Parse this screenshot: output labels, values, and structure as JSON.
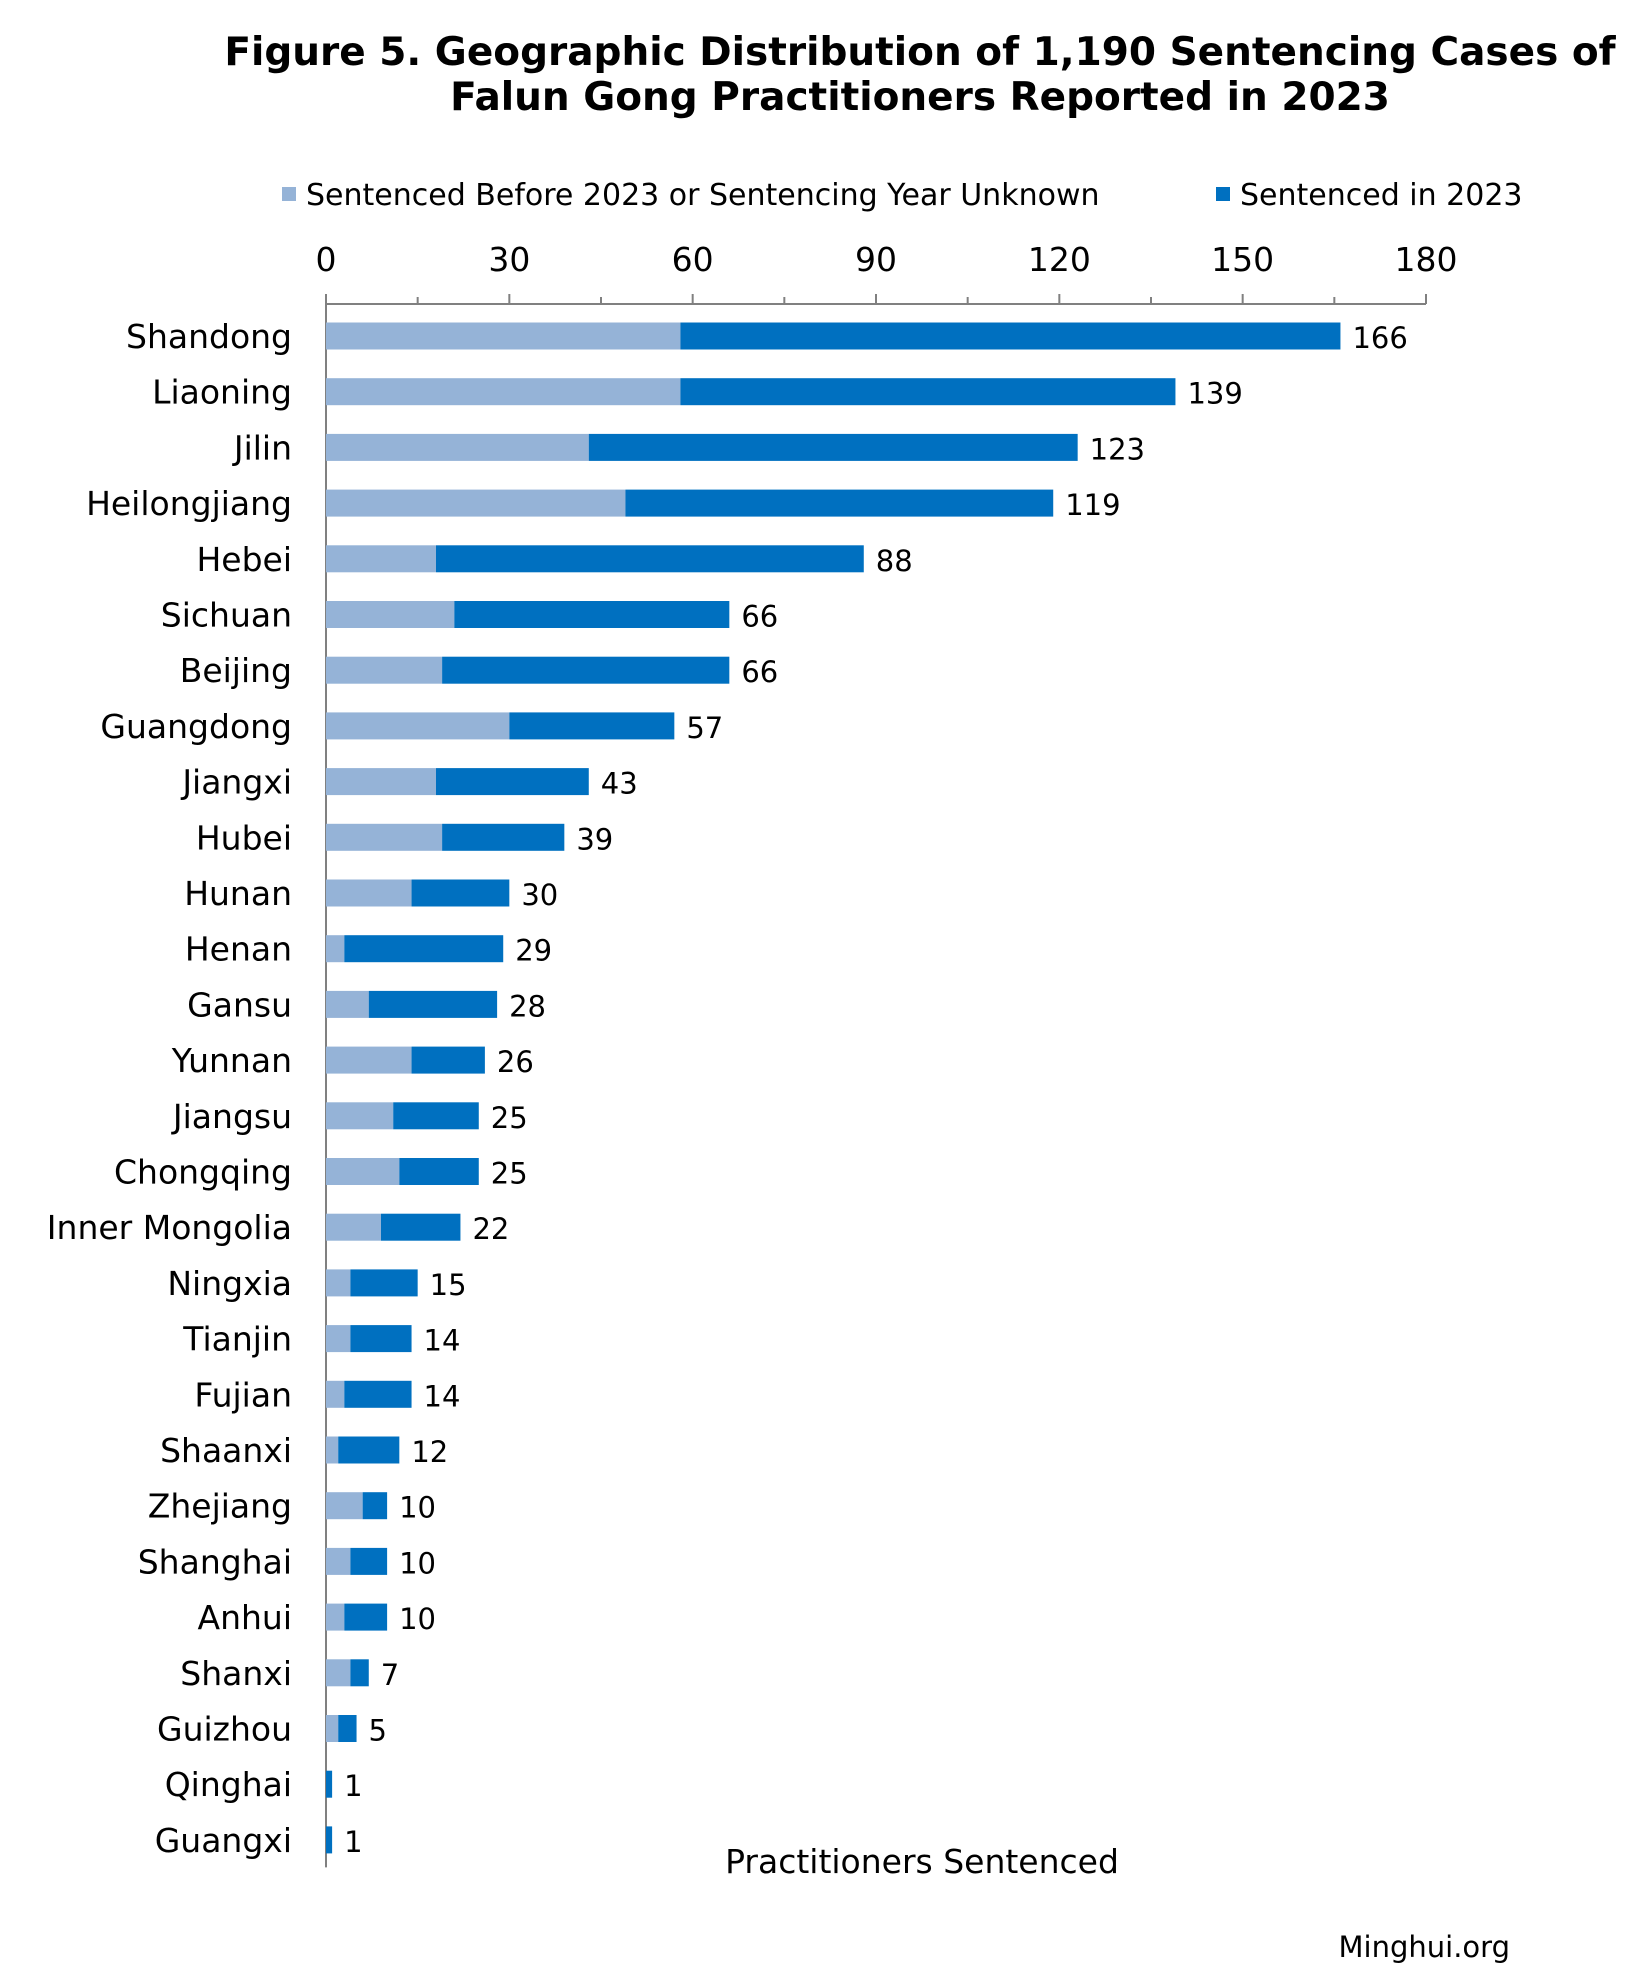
{
  "chart_data": {
    "type": "bar",
    "orientation": "horizontal",
    "stacked": true,
    "title_line1": "Figure 5. Geographic Distribution of 1,190 Sentencing Cases of",
    "title_line2": "Falun Gong Practitioners Reported in 2023",
    "xlabel": "Practitioners Sentenced",
    "source": "Minghui.org",
    "xlim": [
      0,
      180
    ],
    "xticks": [
      "0",
      "30",
      "60",
      "90",
      "120",
      "150",
      "180"
    ],
    "axis_position": "top",
    "legend_position": "top",
    "grid": false,
    "categories": [
      "Shandong",
      "Liaoning",
      "Jilin",
      "Heilongjiang",
      "Hebei",
      "Sichuan",
      "Beijing",
      "Guangdong",
      "Jiangxi",
      "Hubei",
      "Hunan",
      "Henan",
      "Gansu",
      "Yunnan",
      "Jiangsu",
      "Chongqing",
      "Inner Mongolia",
      "Ningxia",
      "Tianjin",
      "Fujian",
      "Shaanxi",
      "Zhejiang",
      "Shanghai",
      "Anhui",
      "Shanxi",
      "Guizhou",
      "Qinghai",
      "Guangxi"
    ],
    "series": [
      {
        "name": "Sentenced Before 2023 or Sentencing Year Unknown",
        "color": "#95b3d7",
        "values": [
          58,
          58,
          43,
          49,
          18,
          21,
          19,
          30,
          18,
          19,
          14,
          3,
          7,
          14,
          11,
          12,
          9,
          4,
          4,
          3,
          2,
          6,
          4,
          3,
          4,
          2,
          0,
          0
        ]
      },
      {
        "name": "Sentenced in 2023",
        "color": "#0070c0",
        "values": [
          108,
          81,
          80,
          70,
          70,
          45,
          47,
          27,
          25,
          20,
          16,
          26,
          21,
          12,
          14,
          13,
          13,
          11,
          10,
          11,
          10,
          4,
          6,
          7,
          3,
          3,
          1,
          1
        ]
      }
    ],
    "totals": [
      "166",
      "139",
      "123",
      "119",
      "88",
      "66",
      "66",
      "57",
      "43",
      "39",
      "30",
      "29",
      "28",
      "26",
      "25",
      "25",
      "22",
      "15",
      "14",
      "14",
      "12",
      "10",
      "10",
      "10",
      "7",
      "5",
      "1",
      "1"
    ]
  }
}
